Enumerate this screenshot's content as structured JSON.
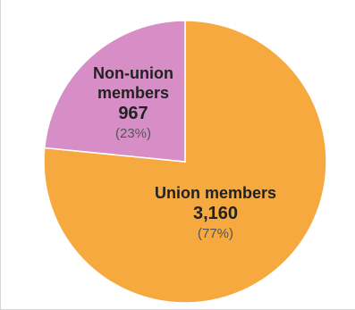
{
  "chart_data": {
    "type": "pie",
    "start_angle_deg": 0,
    "direction": "clockwise",
    "slices": [
      {
        "name_lines": [
          "Union members"
        ],
        "value": 3160,
        "value_label": "3,160",
        "percent_label": "(77%)",
        "color": "#f5a93f"
      },
      {
        "name_lines": [
          "Non-union",
          "members"
        ],
        "value": 967,
        "value_label": "967",
        "percent_label": "(23%)",
        "color": "#d78ec6"
      }
    ],
    "slice_border_color": "#ffffff"
  }
}
